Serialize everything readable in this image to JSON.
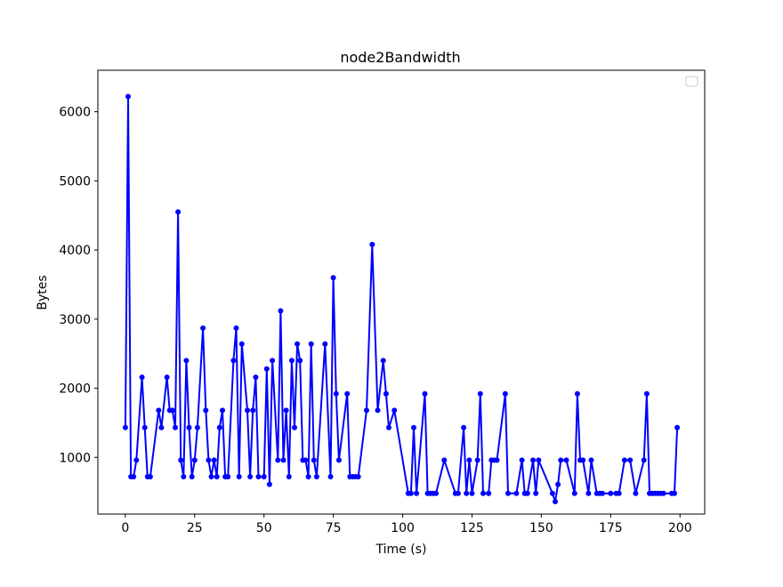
{
  "chart_data": {
    "type": "line",
    "title": "node2Bandwidth",
    "xlabel": "Time (s)",
    "ylabel": "Bytes",
    "xlim": [
      -9.9,
      208.9
    ],
    "ylim": [
      180,
      6600
    ],
    "xticks": [
      0,
      25,
      50,
      75,
      100,
      125,
      150,
      175,
      200
    ],
    "yticks": [
      1000,
      2000,
      3000,
      4000,
      5000,
      6000
    ],
    "grid": false,
    "legend": {
      "position": "top-right",
      "entries": []
    },
    "series": [
      {
        "color": "#0000ff",
        "marker": "circle",
        "x": [
          0,
          1,
          2,
          3,
          4,
          6,
          7,
          8,
          9,
          12,
          13,
          15,
          16,
          17,
          18,
          19,
          20,
          21,
          22,
          23,
          24,
          25,
          26,
          28,
          29,
          30,
          31,
          32,
          33,
          34,
          35,
          36,
          37,
          39,
          40,
          41,
          42,
          44,
          45,
          46,
          47,
          48,
          50,
          51,
          52,
          53,
          55,
          56,
          57,
          58,
          59,
          60,
          61,
          62,
          63,
          64,
          65,
          66,
          67,
          68,
          69,
          72,
          74,
          75,
          76,
          77,
          80,
          81,
          82,
          83,
          84,
          87,
          89,
          91,
          93,
          94,
          95,
          97,
          102,
          103,
          104,
          105,
          108,
          109,
          110,
          111,
          112,
          115,
          119,
          120,
          122,
          123,
          124,
          125,
          127,
          128,
          129,
          131,
          132,
          133,
          134,
          137,
          138,
          141,
          143,
          144,
          145,
          147,
          148,
          149,
          154,
          155,
          156,
          157,
          159,
          162,
          163,
          164,
          165,
          167,
          168,
          170,
          171,
          172,
          175,
          177,
          178,
          180,
          182,
          184,
          187,
          188,
          189,
          190,
          191,
          192,
          193,
          194,
          197,
          198,
          199
        ],
        "y": [
          1430,
          6220,
          720,
          720,
          960,
          2160,
          1430,
          720,
          720,
          1680,
          1430,
          2160,
          1680,
          1680,
          1430,
          4550,
          960,
          720,
          2400,
          1430,
          720,
          960,
          1430,
          2870,
          1680,
          960,
          720,
          960,
          720,
          1430,
          1680,
          720,
          720,
          2400,
          2870,
          720,
          2640,
          1680,
          720,
          1680,
          2160,
          720,
          720,
          2280,
          610,
          2400,
          960,
          3120,
          960,
          1680,
          720,
          2400,
          1430,
          2640,
          2400,
          960,
          960,
          720,
          2640,
          960,
          720,
          2640,
          720,
          3600,
          1920,
          960,
          1920,
          720,
          720,
          720,
          720,
          1680,
          4080,
          1680,
          2400,
          1920,
          1430,
          1680,
          480,
          480,
          1430,
          480,
          1920,
          480,
          480,
          480,
          480,
          960,
          480,
          480,
          1430,
          480,
          960,
          480,
          960,
          1920,
          480,
          480,
          960,
          960,
          960,
          1920,
          480,
          480,
          960,
          480,
          480,
          960,
          480,
          960,
          480,
          360,
          610,
          960,
          960,
          480,
          1920,
          960,
          960,
          480,
          960,
          480,
          480,
          480,
          480,
          480,
          480,
          960,
          960,
          480,
          960,
          1920,
          480,
          480,
          480,
          480,
          480,
          480,
          480,
          480,
          1430
        ]
      }
    ]
  }
}
